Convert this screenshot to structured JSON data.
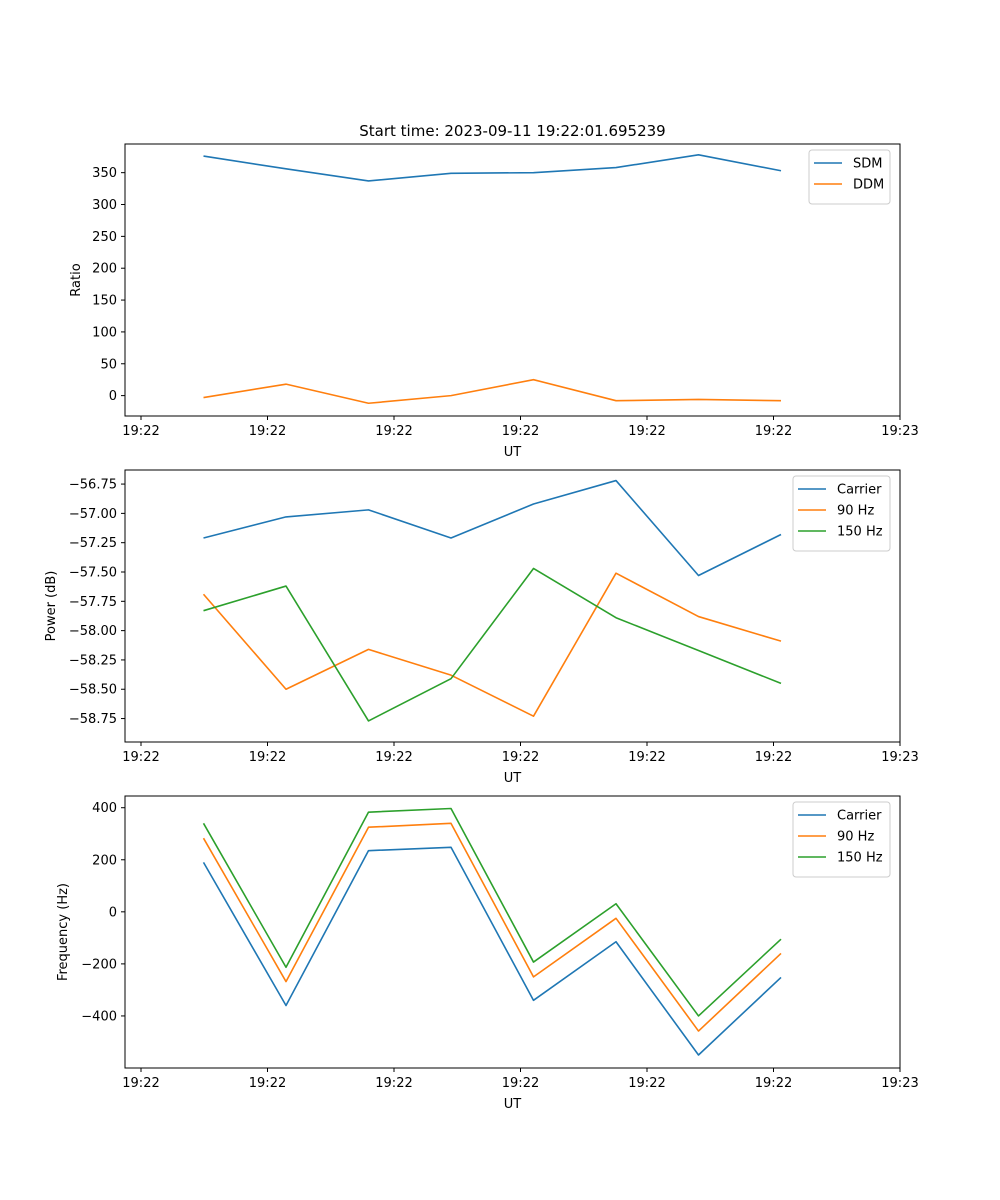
{
  "figure_title": "Start time: 2023-09-11 19:22:01.695239",
  "colors": {
    "blue": "#1f77b4",
    "orange": "#ff7f0e",
    "green": "#2ca02c"
  },
  "chart_data": [
    {
      "type": "line",
      "xlabel": "UT",
      "ylabel": "Ratio",
      "x_tick_labels": [
        "19:22",
        "19:22",
        "19:22",
        "19:22",
        "19:22",
        "19:22",
        "19:22"
      ],
      "x_tick_last": "19:23",
      "ylim": [
        -32,
        395
      ],
      "yticks": [
        0,
        50,
        100,
        150,
        200,
        250,
        300,
        350
      ],
      "ytick_labels": [
        "0",
        "50",
        "100",
        "150",
        "200",
        "250",
        "300",
        "350"
      ],
      "legend_position": "top-right",
      "series": [
        {
          "name": "SDM",
          "color": "#1f77b4",
          "values": [
            376,
            356,
            337,
            349,
            350,
            358,
            378,
            353
          ]
        },
        {
          "name": "DDM",
          "color": "#ff7f0e",
          "values": [
            -3,
            18,
            -12,
            0,
            25,
            -8,
            -6,
            -8
          ]
        }
      ]
    },
    {
      "type": "line",
      "xlabel": "UT",
      "ylabel": "Power (dB)",
      "x_tick_labels": [
        "19:22",
        "19:22",
        "19:22",
        "19:22",
        "19:22",
        "19:22",
        "19:22"
      ],
      "x_tick_last": "19:23",
      "ylim": [
        -58.95,
        -56.63
      ],
      "yticks": [
        -58.75,
        -58.5,
        -58.25,
        -58.0,
        -57.75,
        -57.5,
        -57.25,
        -57.0,
        -56.75
      ],
      "ytick_labels": [
        "−58.75",
        "−58.50",
        "−58.25",
        "−58.00",
        "−57.75",
        "−57.50",
        "−57.25",
        "−57.00",
        "−56.75"
      ],
      "legend_position": "top-right",
      "series": [
        {
          "name": "Carrier",
          "color": "#1f77b4",
          "values": [
            -57.21,
            -57.03,
            -56.97,
            -57.21,
            -56.92,
            -56.72,
            -57.53,
            -57.18
          ]
        },
        {
          "name": "90 Hz",
          "color": "#ff7f0e",
          "values": [
            -57.69,
            -58.5,
            -58.16,
            -58.38,
            -58.73,
            -57.51,
            -57.88,
            -58.09
          ]
        },
        {
          "name": "150 Hz",
          "color": "#2ca02c",
          "values": [
            -57.83,
            -57.62,
            -58.77,
            -58.41,
            -57.47,
            -57.89,
            -58.17,
            -58.45
          ]
        }
      ]
    },
    {
      "type": "line",
      "xlabel": "UT",
      "ylabel": "Frequency (Hz)",
      "x_tick_labels": [
        "19:22",
        "19:22",
        "19:22",
        "19:22",
        "19:22",
        "19:22",
        "19:22"
      ],
      "x_tick_last": "19:23",
      "ylim": [
        -600,
        445
      ],
      "yticks": [
        -400,
        -200,
        0,
        200,
        400
      ],
      "ytick_labels": [
        "−400",
        "−200",
        "0",
        "200",
        "400"
      ],
      "legend_position": "top-right",
      "series": [
        {
          "name": "Carrier",
          "color": "#1f77b4",
          "values": [
            190,
            -360,
            235,
            248,
            -340,
            -115,
            -550,
            -252
          ]
        },
        {
          "name": "90 Hz",
          "color": "#ff7f0e",
          "values": [
            283,
            -268,
            325,
            340,
            -250,
            -25,
            -458,
            -160
          ]
        },
        {
          "name": "150 Hz",
          "color": "#2ca02c",
          "values": [
            340,
            -213,
            383,
            397,
            -193,
            31,
            -400,
            -105
          ]
        }
      ]
    }
  ]
}
